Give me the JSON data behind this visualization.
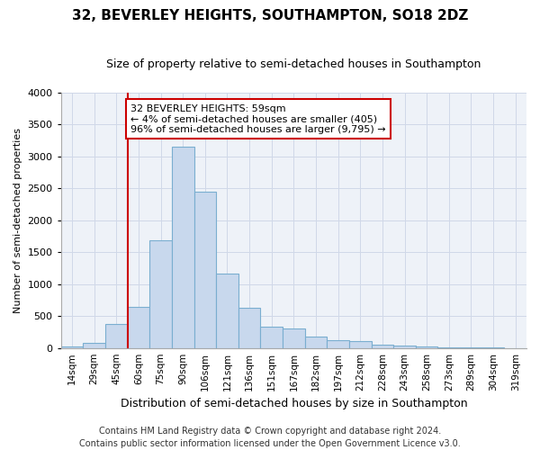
{
  "title": "32, BEVERLEY HEIGHTS, SOUTHAMPTON, SO18 2DZ",
  "subtitle": "Size of property relative to semi-detached houses in Southampton",
  "xlabel": "Distribution of semi-detached houses by size in Southampton",
  "ylabel": "Number of semi-detached properties",
  "footer1": "Contains HM Land Registry data © Crown copyright and database right 2024.",
  "footer2": "Contains public sector information licensed under the Open Government Licence v3.0.",
  "annotation_line1": "32 BEVERLEY HEIGHTS: 59sqm",
  "annotation_line2": "← 4% of semi-detached houses are smaller (405)",
  "annotation_line3": "96% of semi-detached houses are larger (9,795) →",
  "bar_color": "#c8d8ed",
  "bar_edge_color": "#7aaed0",
  "annotation_box_color": "#cc0000",
  "vertical_line_color": "#cc0000",
  "categories": [
    "14sqm",
    "29sqm",
    "45sqm",
    "60sqm",
    "75sqm",
    "90sqm",
    "106sqm",
    "121sqm",
    "136sqm",
    "151sqm",
    "167sqm",
    "182sqm",
    "197sqm",
    "212sqm",
    "228sqm",
    "243sqm",
    "258sqm",
    "273sqm",
    "289sqm",
    "304sqm",
    "319sqm"
  ],
  "values": [
    25,
    85,
    370,
    650,
    1680,
    3150,
    2450,
    1160,
    630,
    330,
    310,
    175,
    125,
    105,
    55,
    40,
    20,
    12,
    8,
    4,
    2
  ],
  "ylim": [
    0,
    4000
  ],
  "yticks": [
    0,
    500,
    1000,
    1500,
    2000,
    2500,
    3000,
    3500,
    4000
  ],
  "grid_color": "#d0d8e8",
  "background_color": "#eef2f8",
  "property_bar_index": 3,
  "title_fontsize": 11,
  "subtitle_fontsize": 9,
  "xlabel_fontsize": 9,
  "ylabel_fontsize": 8,
  "tick_fontsize": 8,
  "xtick_fontsize": 7.5,
  "footer_fontsize": 7
}
